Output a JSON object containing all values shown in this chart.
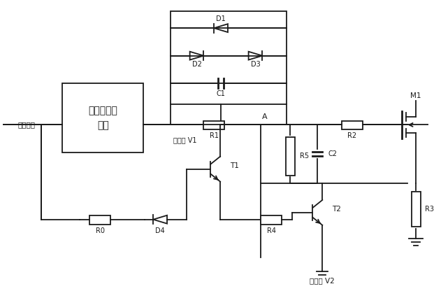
{
  "bg": "#ffffff",
  "lc": "#1a1a1a",
  "lw": 1.3,
  "fw": 6.21,
  "fh": 4.26,
  "dpi": 100,
  "chip_label": "控制或驱动\n芯片",
  "input_label": "输入信号",
  "pos_label": "正电源 V1",
  "neg_label": "负电源 V2",
  "A_label": "A",
  "M1_label": "M1",
  "T1_label": "T1",
  "T2_label": "T2",
  "D1_label": "D1",
  "D2_label": "D2",
  "D3_label": "D3",
  "D4_label": "D4",
  "C1_label": "C1",
  "C2_label": "C2",
  "R0_label": "R0",
  "R1_label": "R1",
  "R2_label": "R2",
  "R3_label": "R3",
  "R4_label": "R4",
  "R5_label": "R5"
}
